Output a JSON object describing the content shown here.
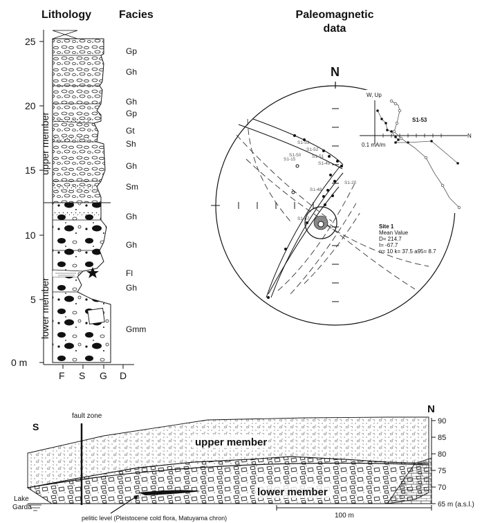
{
  "headers": {
    "lithology": "Lithology",
    "facies": "Facies",
    "paleomagnetic": [
      "Paleomagnetic",
      "data"
    ]
  },
  "log": {
    "depth_ticks": [
      "0 m",
      "5",
      "10",
      "15",
      "20",
      "25"
    ],
    "grain_size_ticks": [
      "F",
      "S",
      "G",
      "D"
    ],
    "members": {
      "upper": "upper member",
      "lower": "lower member"
    },
    "facies": [
      "Gp",
      "Gh",
      "Gh",
      "Gp",
      "Gt",
      "Sh",
      "Gh",
      "Sm",
      "Gh",
      "Gh",
      "Fl",
      "Gh",
      "Gmm"
    ]
  },
  "stereonet": {
    "north_label": "N",
    "circle_labels": [
      "S1-53",
      "S1-52",
      "S1-51",
      "S1-50",
      "S1-49",
      "S1-48",
      "S1-47",
      "S1-15",
      "S1-20"
    ],
    "summary": {
      "site": "Site 1",
      "mean_value": "Mean Value",
      "declination": "D= 214.7",
      "inclination": "I= -67.7",
      "stats": "n= 10  k= 37.5  a95= 8.7"
    }
  },
  "zijderveld": {
    "sample": "S1-53",
    "axis_up": "W, Up",
    "axis_right": "N",
    "scale": "0.1 mA/m"
  },
  "cross_section": {
    "left_label": "S",
    "right_label": "N",
    "fault": "fault zone",
    "upper": "upper member",
    "lower": "lower member",
    "lake": [
      "Lake",
      "Garda"
    ],
    "scale_bar": "100 m",
    "pelitic": "pelitic level (Pleistocene cold flora, Matuyama chron)",
    "elevations": [
      "90",
      "85",
      "80",
      "75",
      "70",
      "65 m (a.s.l.)"
    ]
  }
}
